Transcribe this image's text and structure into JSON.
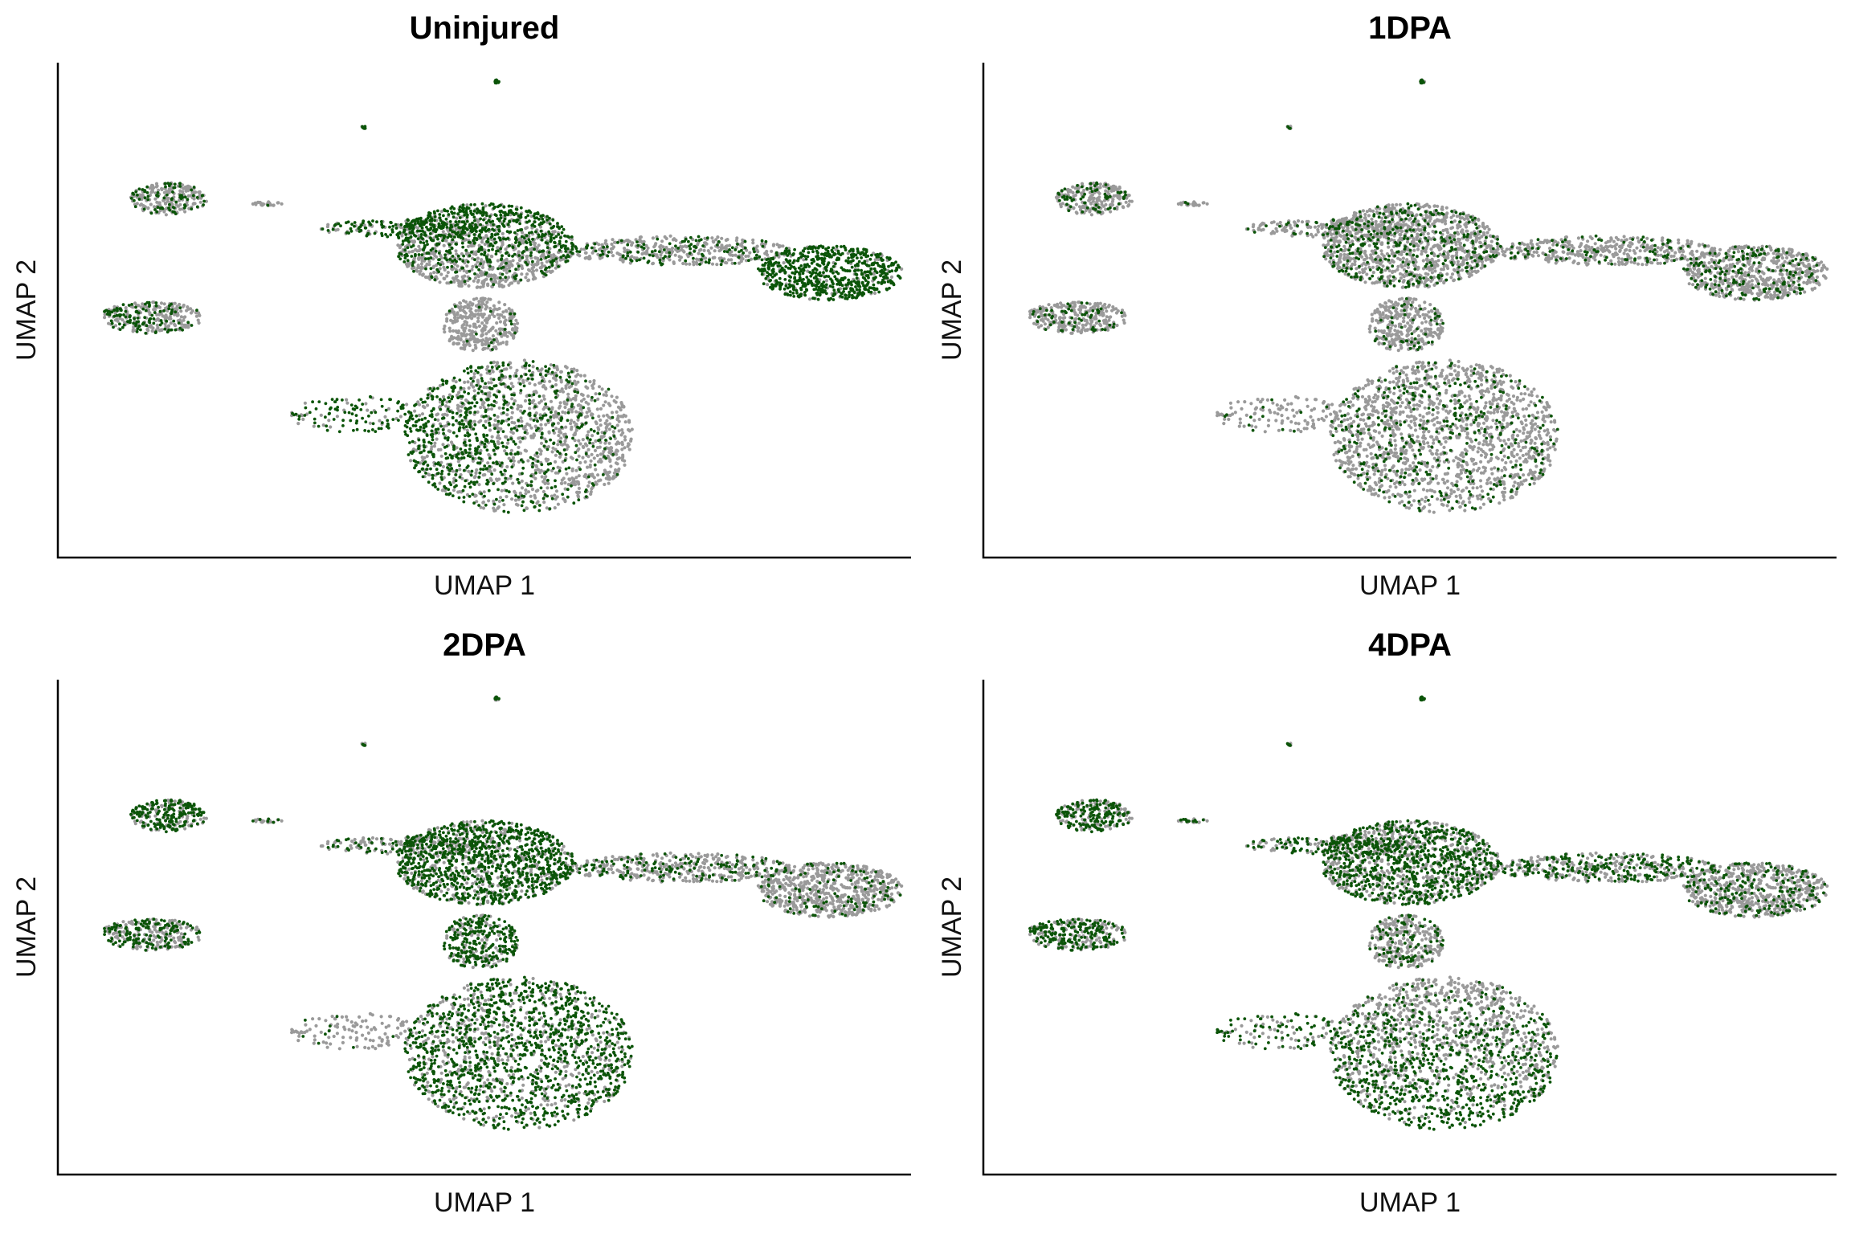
{
  "figure": {
    "colors": {
      "background_cells": "#9a9a9a",
      "highlighted_cells": "#0b5408",
      "axis": "#000000"
    },
    "point_style": "small dots; highlighted cells drawn over grey background cells",
    "axes_style": "left and bottom axis lines only, no ticks, no grid"
  },
  "chart_data": [
    {
      "type": "scatter",
      "title": "Uninjured",
      "xlabel": "UMAP 1",
      "ylabel": "UMAP 2",
      "grid": false,
      "legend": "none",
      "clusters": [
        {
          "name": "tiny-top-1",
          "cx": 5.15,
          "cy": 9.62,
          "rx": 0.03,
          "ry": 0.04,
          "n": 18,
          "hi": 0.95
        },
        {
          "name": "tiny-top-2",
          "cx": 3.6,
          "cy": 8.7,
          "rx": 0.04,
          "ry": 0.03,
          "n": 10,
          "hi": 0.9
        },
        {
          "name": "left-upper",
          "cx": 1.3,
          "cy": 7.25,
          "rx": 0.45,
          "ry": 0.33,
          "n": 260,
          "hi": 0.25
        },
        {
          "name": "left-upper-tail",
          "cx": 2.45,
          "cy": 7.15,
          "rx": 0.18,
          "ry": 0.04,
          "n": 25,
          "hi": 0.05
        },
        {
          "name": "left-lower",
          "cx": 1.1,
          "cy": 4.85,
          "rx": 0.6,
          "ry": 0.32,
          "n": 320,
          "hi": 0.35,
          "hi_dx": -0.5
        },
        {
          "name": "upper-core",
          "cx": 5.0,
          "cy": 6.3,
          "rx": 1.05,
          "ry": 0.85,
          "n": 1300,
          "hi": 0.45,
          "hi_dy": 0.5
        },
        {
          "name": "upper-arm-left",
          "cx": 4.05,
          "cy": 6.65,
          "rx": 1.0,
          "ry": 0.18,
          "n": 200,
          "hi": 0.6
        },
        {
          "name": "upper-arm-right",
          "cx": 7.3,
          "cy": 6.2,
          "rx": 1.3,
          "ry": 0.3,
          "n": 450,
          "hi": 0.25
        },
        {
          "name": "right-tip",
          "cx": 9.05,
          "cy": 5.75,
          "rx": 0.85,
          "ry": 0.55,
          "n": 700,
          "hi": 0.85
        },
        {
          "name": "waist",
          "cx": 4.95,
          "cy": 4.7,
          "rx": 0.45,
          "ry": 0.55,
          "n": 350,
          "hi": 0.05
        },
        {
          "name": "lower-body",
          "cx": 5.4,
          "cy": 2.45,
          "rx": 1.35,
          "ry": 1.55,
          "n": 1700,
          "hi": 0.4,
          "hi_dx": -0.8
        },
        {
          "name": "lower-arm",
          "cx": 3.45,
          "cy": 2.9,
          "rx": 0.75,
          "ry": 0.38,
          "n": 120,
          "hi": 0.7
        }
      ]
    },
    {
      "type": "scatter",
      "title": "1DPA",
      "xlabel": "UMAP 1",
      "ylabel": "UMAP 2",
      "grid": false,
      "legend": "none",
      "clusters": [
        {
          "name": "tiny-top-1",
          "cx": 5.15,
          "cy": 9.62,
          "rx": 0.03,
          "ry": 0.04,
          "n": 18,
          "hi": 0.3
        },
        {
          "name": "tiny-top-2",
          "cx": 3.6,
          "cy": 8.7,
          "rx": 0.04,
          "ry": 0.03,
          "n": 10,
          "hi": 0.2
        },
        {
          "name": "left-upper",
          "cx": 1.3,
          "cy": 7.25,
          "rx": 0.45,
          "ry": 0.33,
          "n": 260,
          "hi": 0.25
        },
        {
          "name": "left-upper-tail",
          "cx": 2.45,
          "cy": 7.15,
          "rx": 0.18,
          "ry": 0.04,
          "n": 25,
          "hi": 0.05
        },
        {
          "name": "left-lower",
          "cx": 1.1,
          "cy": 4.85,
          "rx": 0.6,
          "ry": 0.32,
          "n": 320,
          "hi": 0.15
        },
        {
          "name": "upper-core",
          "cx": 5.0,
          "cy": 6.3,
          "rx": 1.05,
          "ry": 0.85,
          "n": 1300,
          "hi": 0.22
        },
        {
          "name": "upper-arm-left",
          "cx": 4.05,
          "cy": 6.65,
          "rx": 1.0,
          "ry": 0.18,
          "n": 200,
          "hi": 0.15
        },
        {
          "name": "upper-arm-right",
          "cx": 7.3,
          "cy": 6.2,
          "rx": 1.3,
          "ry": 0.3,
          "n": 450,
          "hi": 0.2
        },
        {
          "name": "right-tip",
          "cx": 9.05,
          "cy": 5.75,
          "rx": 0.85,
          "ry": 0.55,
          "n": 700,
          "hi": 0.25
        },
        {
          "name": "waist",
          "cx": 4.95,
          "cy": 4.7,
          "rx": 0.45,
          "ry": 0.55,
          "n": 350,
          "hi": 0.12
        },
        {
          "name": "lower-body",
          "cx": 5.4,
          "cy": 2.45,
          "rx": 1.35,
          "ry": 1.55,
          "n": 1700,
          "hi": 0.2
        },
        {
          "name": "lower-arm",
          "cx": 3.45,
          "cy": 2.9,
          "rx": 0.75,
          "ry": 0.38,
          "n": 120,
          "hi": 0.1
        }
      ]
    },
    {
      "type": "scatter",
      "title": "2DPA",
      "xlabel": "UMAP 1",
      "ylabel": "UMAP 2",
      "grid": false,
      "legend": "none",
      "clusters": [
        {
          "name": "tiny-top-1",
          "cx": 5.15,
          "cy": 9.62,
          "rx": 0.03,
          "ry": 0.04,
          "n": 18,
          "hi": 0.6
        },
        {
          "name": "tiny-top-2",
          "cx": 3.6,
          "cy": 8.7,
          "rx": 0.04,
          "ry": 0.03,
          "n": 10,
          "hi": 0.6
        },
        {
          "name": "left-upper",
          "cx": 1.3,
          "cy": 7.25,
          "rx": 0.45,
          "ry": 0.33,
          "n": 260,
          "hi": 0.7
        },
        {
          "name": "left-upper-tail",
          "cx": 2.45,
          "cy": 7.15,
          "rx": 0.18,
          "ry": 0.04,
          "n": 25,
          "hi": 0.3
        },
        {
          "name": "left-lower",
          "cx": 1.1,
          "cy": 4.85,
          "rx": 0.6,
          "ry": 0.32,
          "n": 320,
          "hi": 0.45
        },
        {
          "name": "upper-core",
          "cx": 5.0,
          "cy": 6.3,
          "rx": 1.05,
          "ry": 0.85,
          "n": 1300,
          "hi": 0.7
        },
        {
          "name": "upper-arm-left",
          "cx": 4.05,
          "cy": 6.65,
          "rx": 1.0,
          "ry": 0.18,
          "n": 200,
          "hi": 0.35
        },
        {
          "name": "upper-arm-right",
          "cx": 7.3,
          "cy": 6.2,
          "rx": 1.3,
          "ry": 0.3,
          "n": 450,
          "hi": 0.35
        },
        {
          "name": "right-tip",
          "cx": 9.05,
          "cy": 5.75,
          "rx": 0.85,
          "ry": 0.55,
          "n": 700,
          "hi": 0.15
        },
        {
          "name": "waist",
          "cx": 4.95,
          "cy": 4.7,
          "rx": 0.45,
          "ry": 0.55,
          "n": 350,
          "hi": 0.7
        },
        {
          "name": "lower-body",
          "cx": 5.4,
          "cy": 2.45,
          "rx": 1.35,
          "ry": 1.55,
          "n": 1700,
          "hi": 0.65
        },
        {
          "name": "lower-arm",
          "cx": 3.45,
          "cy": 2.9,
          "rx": 0.75,
          "ry": 0.38,
          "n": 120,
          "hi": 0.1
        }
      ]
    },
    {
      "type": "scatter",
      "title": "4DPA",
      "xlabel": "UMAP 1",
      "ylabel": "UMAP 2",
      "grid": false,
      "legend": "none",
      "clusters": [
        {
          "name": "tiny-top-1",
          "cx": 5.15,
          "cy": 9.62,
          "rx": 0.03,
          "ry": 0.04,
          "n": 18,
          "hi": 0.7
        },
        {
          "name": "tiny-top-2",
          "cx": 3.6,
          "cy": 8.7,
          "rx": 0.04,
          "ry": 0.03,
          "n": 10,
          "hi": 0.6
        },
        {
          "name": "left-upper",
          "cx": 1.3,
          "cy": 7.25,
          "rx": 0.45,
          "ry": 0.33,
          "n": 260,
          "hi": 0.65
        },
        {
          "name": "left-upper-tail",
          "cx": 2.45,
          "cy": 7.15,
          "rx": 0.18,
          "ry": 0.04,
          "n": 25,
          "hi": 0.5
        },
        {
          "name": "left-lower",
          "cx": 1.1,
          "cy": 4.85,
          "rx": 0.6,
          "ry": 0.32,
          "n": 320,
          "hi": 0.6
        },
        {
          "name": "upper-core",
          "cx": 5.0,
          "cy": 6.3,
          "rx": 1.05,
          "ry": 0.85,
          "n": 1300,
          "hi": 0.55
        },
        {
          "name": "upper-arm-left",
          "cx": 4.05,
          "cy": 6.65,
          "rx": 1.0,
          "ry": 0.18,
          "n": 200,
          "hi": 0.55
        },
        {
          "name": "upper-arm-right",
          "cx": 7.3,
          "cy": 6.2,
          "rx": 1.3,
          "ry": 0.3,
          "n": 450,
          "hi": 0.45
        },
        {
          "name": "right-tip",
          "cx": 9.05,
          "cy": 5.75,
          "rx": 0.85,
          "ry": 0.55,
          "n": 700,
          "hi": 0.25
        },
        {
          "name": "waist",
          "cx": 4.95,
          "cy": 4.7,
          "rx": 0.45,
          "ry": 0.55,
          "n": 350,
          "hi": 0.3
        },
        {
          "name": "lower-body",
          "cx": 5.4,
          "cy": 2.45,
          "rx": 1.35,
          "ry": 1.55,
          "n": 1700,
          "hi": 0.45,
          "hi_dy": -0.6
        },
        {
          "name": "lower-arm",
          "cx": 3.45,
          "cy": 2.9,
          "rx": 0.75,
          "ry": 0.38,
          "n": 120,
          "hi": 0.55
        }
      ]
    }
  ]
}
